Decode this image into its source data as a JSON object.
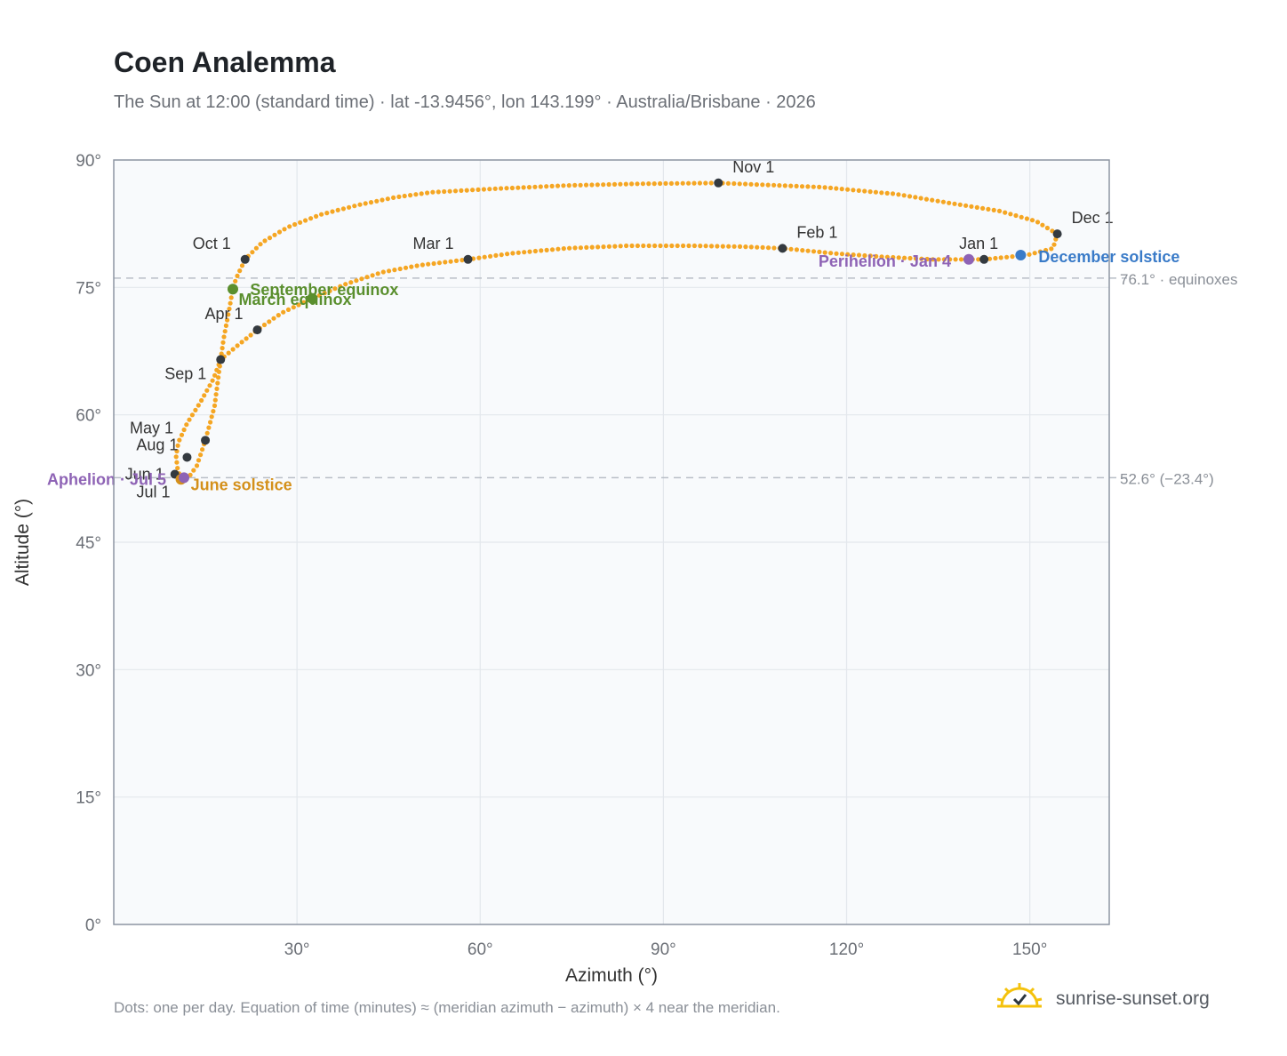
{
  "header": {
    "title": "Coen Analemma",
    "subtitle": "The Sun at 12:00 (standard time) · lat -13.9456°, lon 143.199° · Australia/Brisbane · 2026"
  },
  "footer": {
    "note": "Dots: one per day. Equation of time (minutes) ≈ (meridian azimuth − azimuth) × 4 near the meridian.",
    "brand": "sunrise-sunset.org"
  },
  "chart_data": {
    "type": "scatter",
    "xlabel": "Azimuth (°)",
    "ylabel": "Altitude (°)",
    "xlim": [
      0,
      163
    ],
    "ylim": [
      0,
      90
    ],
    "xticks": [
      30,
      60,
      90,
      120,
      150
    ],
    "xtick_labels": [
      "30°",
      "60°",
      "90°",
      "120°",
      "150°"
    ],
    "yticks": [
      0,
      15,
      30,
      45,
      60,
      75,
      90
    ],
    "ytick_labels": [
      "0°",
      "15°",
      "30°",
      "45°",
      "60°",
      "75°",
      "90°"
    ],
    "grid": true,
    "colors": {
      "path": "#f5a623",
      "month": "#343a40",
      "equinox": "#5a8f2e",
      "solstice_june": "#d4901a",
      "solstice_december": "#3a7bc8",
      "apsis": "#8e63b5",
      "reference": "#b8bec6"
    },
    "reference_lines": [
      {
        "y": 76.1,
        "label": "76.1° · equinoxes"
      },
      {
        "y": 52.6,
        "label": "52.6° (−23.4°)"
      }
    ],
    "months": [
      {
        "label": "Jan 1",
        "az": 142.5,
        "alt": 78.3
      },
      {
        "label": "Feb 1",
        "az": 109.5,
        "alt": 79.6
      },
      {
        "label": "Mar 1",
        "az": 58.0,
        "alt": 78.3
      },
      {
        "label": "Apr 1",
        "az": 23.5,
        "alt": 70.0
      },
      {
        "label": "May 1",
        "az": 15.0,
        "alt": 57.0
      },
      {
        "label": "Jun 1",
        "az": 10.0,
        "alt": 53.0
      },
      {
        "label": "Jul 1",
        "az": 11.0,
        "alt": 52.4
      },
      {
        "label": "Aug 1",
        "az": 12.0,
        "alt": 55.0
      },
      {
        "label": "Sep 1",
        "az": 17.5,
        "alt": 66.5
      },
      {
        "label": "Oct 1",
        "az": 21.5,
        "alt": 78.3
      },
      {
        "label": "Nov 1",
        "az": 99.0,
        "alt": 87.3
      },
      {
        "label": "Dec 1",
        "az": 154.5,
        "alt": 81.3
      }
    ],
    "events": [
      {
        "label": "March equinox",
        "az": 19.5,
        "alt": 74.8,
        "kind": "equinox"
      },
      {
        "label": "September equinox",
        "az": 32.5,
        "alt": 73.7,
        "kind": "equinox"
      },
      {
        "label": "June solstice",
        "az": 11.0,
        "alt": 52.4,
        "kind": "solstice_june"
      },
      {
        "label": "December solstice",
        "az": 148.5,
        "alt": 78.8,
        "kind": "solstice_december"
      },
      {
        "label": "Perihelion · Jan 4",
        "az": 140.0,
        "alt": 78.3,
        "kind": "apsis"
      },
      {
        "label": "Aphelion · Jul 5",
        "az": 11.5,
        "alt": 52.6,
        "kind": "apsis"
      }
    ],
    "path": [
      [
        142.5,
        78.3
      ],
      [
        149.5,
        78.8
      ],
      [
        153.8,
        79.6
      ],
      [
        154.5,
        81.3
      ],
      [
        151.0,
        82.8
      ],
      [
        145.0,
        84.0
      ],
      [
        138.0,
        84.8
      ],
      [
        128.0,
        86.0
      ],
      [
        116.0,
        86.8
      ],
      [
        99.0,
        87.3
      ],
      [
        86.0,
        87.2
      ],
      [
        74.0,
        87.0
      ],
      [
        62.0,
        86.6
      ],
      [
        52.0,
        86.2
      ],
      [
        46.0,
        85.6
      ],
      [
        40.0,
        84.7
      ],
      [
        34.0,
        83.6
      ],
      [
        28.5,
        82.1
      ],
      [
        24.3,
        80.3
      ],
      [
        21.5,
        78.3
      ],
      [
        20.0,
        76.0
      ],
      [
        19.5,
        74.8
      ],
      [
        18.8,
        72.0
      ],
      [
        18.0,
        69.0
      ],
      [
        17.5,
        66.5
      ],
      [
        16.3,
        64.2
      ],
      [
        14.2,
        61.5
      ],
      [
        12.0,
        59.0
      ],
      [
        10.6,
        56.8
      ],
      [
        10.2,
        55.2
      ],
      [
        10.4,
        53.8
      ],
      [
        11.0,
        52.4
      ],
      [
        12.2,
        52.6
      ],
      [
        13.6,
        54.0
      ],
      [
        15.0,
        57.0
      ],
      [
        16.5,
        61.0
      ],
      [
        17.5,
        66.5
      ],
      [
        20.0,
        68.0
      ],
      [
        23.5,
        70.0
      ],
      [
        27.5,
        72.0
      ],
      [
        32.5,
        73.7
      ],
      [
        38.0,
        75.4
      ],
      [
        44.0,
        76.8
      ],
      [
        50.0,
        77.6
      ],
      [
        58.0,
        78.3
      ],
      [
        65.0,
        79.0
      ],
      [
        74.0,
        79.6
      ],
      [
        84.0,
        79.9
      ],
      [
        95.0,
        79.9
      ],
      [
        103.0,
        79.8
      ],
      [
        109.5,
        79.6
      ],
      [
        118.0,
        79.0
      ],
      [
        126.0,
        78.6
      ],
      [
        134.0,
        78.3
      ],
      [
        140.0,
        78.3
      ],
      [
        142.5,
        78.3
      ]
    ]
  }
}
